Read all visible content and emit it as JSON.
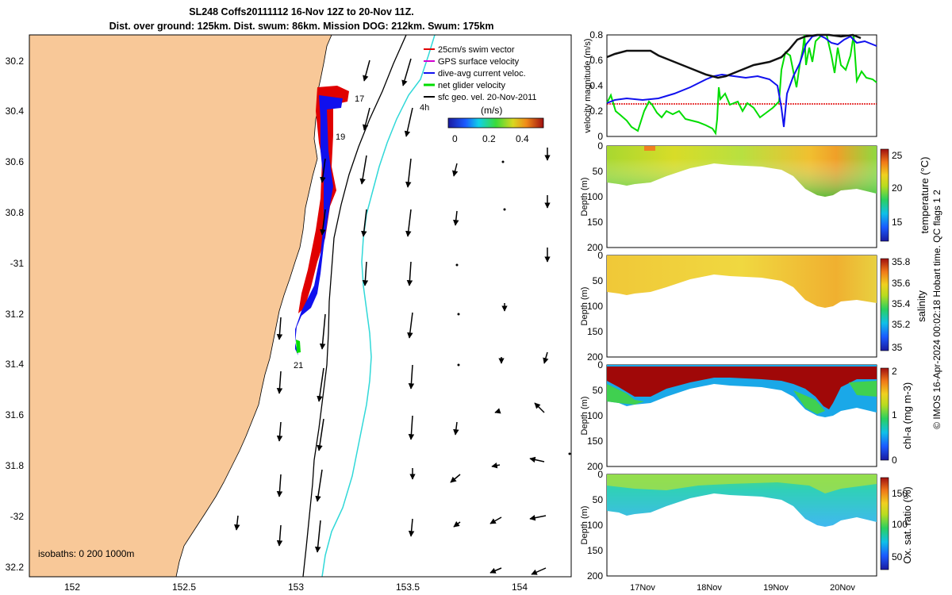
{
  "title": {
    "line1": "SL248 Coffs20111112 16-Nov 12Z to 20-Nov 11Z.",
    "line2": "Dist. over ground: 125km. Dist. swum: 86km. Mission DOG: 212km. Swum: 175km"
  },
  "map": {
    "lat_ticks": [
      "30.2",
      "30.4",
      "30.6",
      "30.8",
      "-31",
      "31.2",
      "31.4",
      "31.6",
      "31.8",
      "-32",
      "32.2"
    ],
    "lon_ticks": [
      "152",
      "152.5",
      "153",
      "153.5",
      "154"
    ],
    "legend": [
      {
        "label": "25cm/s swim vector",
        "color": "#e00000"
      },
      {
        "label": "GPS surface velocity",
        "color": "#d000d0"
      },
      {
        "label": "dive-avg current veloc.",
        "color": "#1010ee"
      },
      {
        "label": "net glider velocity",
        "color": "#00dd00"
      },
      {
        "label": "sfc geo. vel. 20-Nov-2011",
        "color": "#000000"
      }
    ],
    "day_labels": [
      "17",
      "19",
      "21"
    ],
    "four_hour_label": "4h",
    "speed_colorbar": {
      "unit": "(m/s)",
      "ticks": [
        "0",
        "0.2",
        "0.4"
      ]
    },
    "isobaths_text": "isobaths: 0   200  1000m",
    "colors": {
      "land": "#f8c898",
      "ocean": "#ffffff",
      "isobath_200": "#000000",
      "isobath_1000": "#30d8d8"
    }
  },
  "velocity_panel": {
    "ylabel": "velocity magnitude (m/s)",
    "yticks": [
      "0",
      "0.2",
      "0.4",
      "0.6",
      "0.8"
    ],
    "ylim": [
      0,
      0.8
    ]
  },
  "sections": [
    {
      "ylabel": "Depth (m)",
      "yticks": [
        "0",
        "50",
        "100",
        "150",
        "200"
      ],
      "cb_label": "temperature (°C)",
      "cb_ticks": [
        "25",
        "20",
        "15"
      ]
    },
    {
      "ylabel": "Depth (m)",
      "yticks": [
        "0",
        "50",
        "100",
        "150",
        "200"
      ],
      "cb_label": "salinity",
      "cb_ticks": [
        "35.8",
        "35.6",
        "35.4",
        "35.2",
        "35"
      ]
    },
    {
      "ylabel": "Depth (m)",
      "yticks": [
        "0",
        "50",
        "100",
        "150",
        "200"
      ],
      "cb_label": "chl-a (mg m-3)",
      "cb_ticks": [
        "2",
        "1",
        "0"
      ]
    },
    {
      "ylabel": "Depth (m)",
      "yticks": [
        "0",
        "50",
        "100",
        "150",
        "200"
      ],
      "cb_label": "Ox. sat. ratio (%)",
      "cb_ticks": [
        "150",
        "100",
        "50"
      ]
    }
  ],
  "time_ticks": [
    "17Nov",
    "18Nov",
    "19Nov",
    "20Nov"
  ],
  "footer": "© IMOS 16-Apr-2024 00:02:18 Hobart time. QC flags 1  2"
}
